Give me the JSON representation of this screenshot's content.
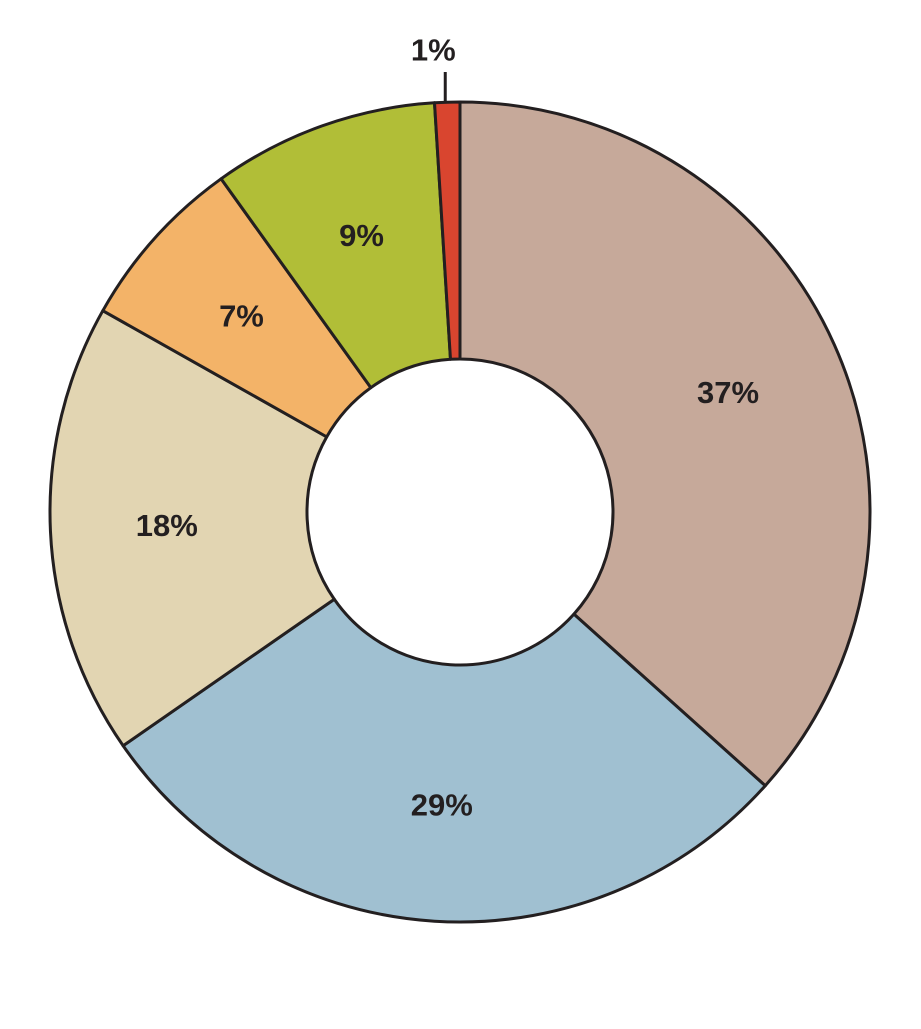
{
  "chart_data": {
    "type": "pie",
    "variant": "donut",
    "title": "",
    "order": "clockwise-from-top",
    "slices": [
      {
        "value": 37,
        "label": "37%",
        "color": "#c6a99a"
      },
      {
        "value": 29,
        "label": "29%",
        "color": "#a0c0d1"
      },
      {
        "value": 18,
        "label": "18%",
        "color": "#e2d5b2"
      },
      {
        "value": 7,
        "label": "7%",
        "color": "#f3b368"
      },
      {
        "value": 9,
        "label": "9%",
        "color": "#b1be37"
      },
      {
        "value": 1,
        "label": "1%",
        "color": "#d9452f"
      }
    ],
    "legend": "none",
    "outline_color": "#231f20"
  }
}
